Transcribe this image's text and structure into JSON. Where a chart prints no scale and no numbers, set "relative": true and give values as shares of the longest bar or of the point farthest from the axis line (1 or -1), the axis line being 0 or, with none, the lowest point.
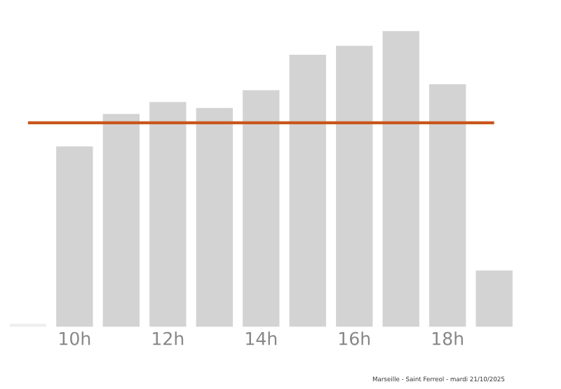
{
  "chart_data": {
    "type": "bar",
    "relative": true,
    "categories": [
      null,
      "10h",
      null,
      "12h",
      null,
      "14h",
      null,
      "16h",
      null,
      "18h",
      null
    ],
    "values": [
      0.01,
      0.61,
      0.72,
      0.76,
      0.74,
      0.8,
      0.92,
      0.95,
      1,
      0.82,
      0.19
    ],
    "colors": [
      "#eeeeee",
      "#d3d3d3",
      "#d3d3d3",
      "#d3d3d3",
      "#d3d3d3",
      "#d3d3d3",
      "#d3d3d3",
      "#d3d3d3",
      "#d3d3d3",
      "#d3d3d3",
      "#d3d3d3"
    ],
    "ref_lines": [
      {
        "axis": "y",
        "value": 0.69,
        "color": "#c8561b"
      }
    ],
    "annotations": [
      "Marseille - Saint Ferreol - mardi 21/10/2025"
    ]
  }
}
